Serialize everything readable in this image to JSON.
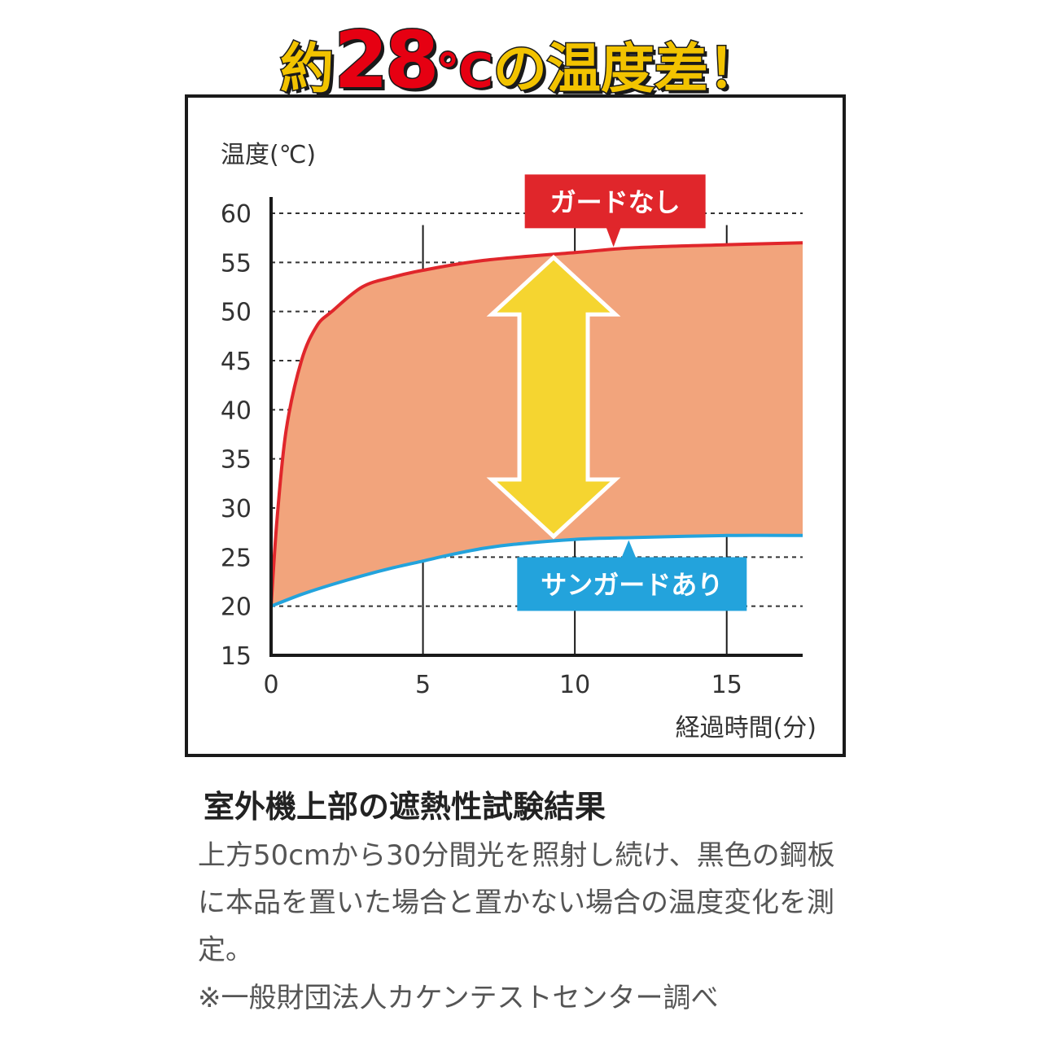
{
  "headline": {
    "prefix": "約",
    "number": "28",
    "unit": "℃",
    "suffix": "の温度差！"
  },
  "colors": {
    "without_guard": "#e0262b",
    "with_guard": "#23a3dc",
    "gap_fill": "#f2a47c",
    "arrow_fill": "#f5d530",
    "arrow_stroke": "#ffffff",
    "axis": "#1a1a1a"
  },
  "chart_data": {
    "type": "line",
    "title": "",
    "ylabel": "温度(℃)",
    "xlabel": "経過時間(分)",
    "xlim": [
      0,
      17.5
    ],
    "ylim": [
      15,
      60
    ],
    "x_ticks": [
      0,
      5,
      10,
      15
    ],
    "y_ticks": [
      15,
      20,
      25,
      30,
      35,
      40,
      45,
      50,
      55,
      60
    ],
    "grid": {
      "horizontal": "dashed",
      "vertical": "solid"
    },
    "fill_between_series": true,
    "series": [
      {
        "name": "ガードなし",
        "color": "#e0262b",
        "points": [
          [
            0,
            20
          ],
          [
            0.2,
            29
          ],
          [
            0.5,
            38
          ],
          [
            1,
            45
          ],
          [
            1.5,
            48.5
          ],
          [
            2,
            50
          ],
          [
            3,
            52.5
          ],
          [
            4,
            53.5
          ],
          [
            5,
            54.2
          ],
          [
            7,
            55.2
          ],
          [
            10,
            56
          ],
          [
            12,
            56.5
          ],
          [
            15,
            56.8
          ],
          [
            17.5,
            57
          ]
        ]
      },
      {
        "name": "サンガードあり",
        "color": "#23a3dc",
        "points": [
          [
            0,
            20
          ],
          [
            1,
            21.2
          ],
          [
            2,
            22.2
          ],
          [
            3,
            23.1
          ],
          [
            4,
            23.9
          ],
          [
            5,
            24.6
          ],
          [
            6,
            25.3
          ],
          [
            7,
            25.9
          ],
          [
            8,
            26.3
          ],
          [
            10,
            26.8
          ],
          [
            12,
            27
          ],
          [
            15,
            27.2
          ],
          [
            17.5,
            27.2
          ]
        ]
      }
    ],
    "annotations": [
      {
        "text": "ガードなし",
        "series": "ガードなし",
        "at_x": 11.3
      },
      {
        "text": "サンガードあり",
        "series": "サンガードあり",
        "at_x": 11.8
      },
      {
        "type": "double-arrow",
        "at_x": 9.3,
        "from_y": 55.5,
        "to_y": 27.1
      }
    ]
  },
  "caption": {
    "title": "室外機上部の遮熱性試験結果",
    "body": "上方50cmから30分間光を照射し続け、黒色の鋼板に本品を置いた場合と置かない場合の温度変化を測定。",
    "note": "※一般財団法人カケンテストセンター調べ"
  }
}
